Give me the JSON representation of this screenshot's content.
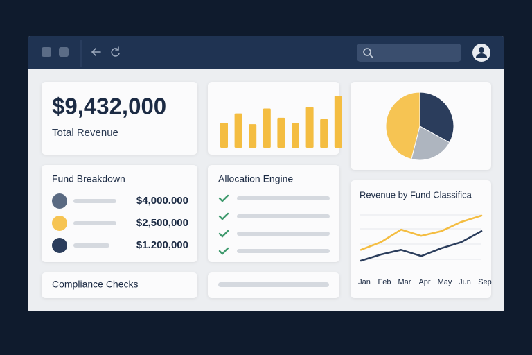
{
  "total_revenue": {
    "value": "$9,432,000",
    "label": "Total Revenue"
  },
  "bar_chart": {
    "type": "bar",
    "values": [
      35,
      48,
      33,
      55,
      42,
      35,
      57,
      40,
      73
    ],
    "color": "#f4bd41"
  },
  "pie_chart": {
    "type": "pie",
    "values": [
      33,
      21,
      46
    ],
    "colors": [
      "#2b3d5c",
      "#aeb5bf",
      "#f6c453"
    ]
  },
  "fund_breakdown": {
    "title": "Fund Breakdown",
    "items": [
      {
        "color": "#5a6a82",
        "amount": "$4,000.000"
      },
      {
        "color": "#f6c453",
        "amount": "$2,500,000"
      },
      {
        "color": "#2b3d5c",
        "amount": "$1.200,000"
      }
    ]
  },
  "allocation_engine": {
    "title": "Allocation Engine"
  },
  "compliance": {
    "title": "Compliance Checks"
  },
  "revenue_chart": {
    "type": "line",
    "title": "Revenue by Fund Classifica",
    "categories": [
      "Jan",
      "Feb",
      "Mar",
      "Apr",
      "May",
      "Jun",
      "Sep"
    ],
    "series": [
      {
        "color": "#f4bd41",
        "values": [
          22,
          32,
          48,
          40,
          46,
          58,
          66
        ]
      },
      {
        "color": "#2b3d5c",
        "values": [
          8,
          16,
          22,
          14,
          24,
          32,
          46
        ]
      }
    ]
  }
}
